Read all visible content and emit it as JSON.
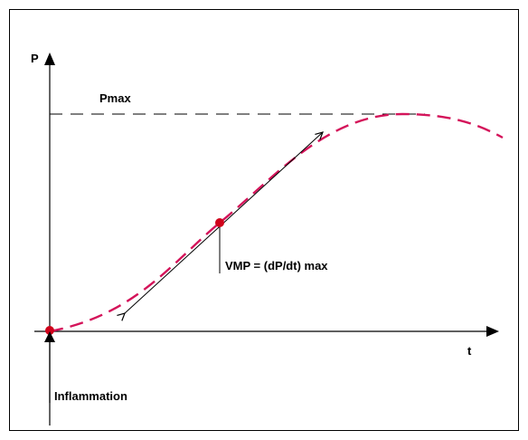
{
  "labels": {
    "p_axis": "P",
    "t_axis": "t",
    "pmax": "Pmax",
    "vmp": "VMP = (dP/dt) max",
    "inflammation": "Inflammation"
  },
  "colors": {
    "curve": "#d4145a",
    "point": "#d0021b",
    "border": "#000000",
    "background": "#ffffff",
    "axis": "#000000"
  }
}
